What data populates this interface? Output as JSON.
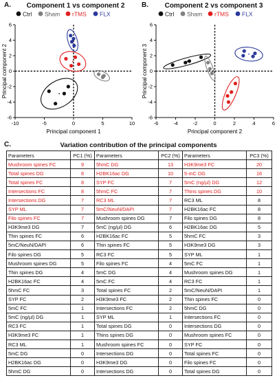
{
  "panel_a": {
    "letter": "A.",
    "title": "Component 1 vs component 2",
    "legend": [
      {
        "label": "Ctrl",
        "color": "#111111"
      },
      {
        "label": "Sham",
        "color": "#808080"
      },
      {
        "label": "rTMS",
        "color": "#e02020"
      },
      {
        "label": "FLX",
        "color": "#2a3a9c"
      }
    ]
  },
  "panel_b": {
    "letter": "B.",
    "title": "Component 2 vs component 3",
    "legend": [
      {
        "label": "Ctrl",
        "color": "#111111"
      },
      {
        "label": "Sham",
        "color": "#808080"
      },
      {
        "label": "rTMS",
        "color": "#e02020"
      },
      {
        "label": "FLX",
        "color": "#2a3a9c"
      }
    ]
  },
  "panel_c": {
    "letter": "C.",
    "title": "Variation contribution of the principal components"
  },
  "chart_data": [
    {
      "type": "scatter",
      "title": "Component 1 vs component 2",
      "xlabel": "Principal component 1",
      "ylabel": "Principal component 2",
      "xlim": [
        -10,
        10
      ],
      "ylim": [
        -6,
        6
      ],
      "xticks": [
        -10,
        -5,
        0,
        5,
        10
      ],
      "yticks": [
        -6,
        -4,
        -2,
        0,
        2,
        4,
        6
      ],
      "series": [
        {
          "name": "Ctrl",
          "color": "#111111",
          "points": [
            [
              -4.2,
              -2.6
            ],
            [
              -3.1,
              -4.2
            ],
            [
              -1.6,
              -2.9
            ],
            [
              -0.9,
              -2.0
            ]
          ]
        },
        {
          "name": "Sham",
          "color": "#808080",
          "points": [
            [
              4.3,
              -0.4
            ],
            [
              5.2,
              -0.6
            ],
            [
              5.0,
              -0.8
            ]
          ]
        },
        {
          "name": "rTMS",
          "color": "#e02020",
          "points": [
            [
              -1.3,
              1.6
            ],
            [
              0.3,
              1.8
            ],
            [
              -0.4,
              0.7
            ],
            [
              0.9,
              0.9
            ]
          ]
        },
        {
          "name": "FLX",
          "color": "#2a3a9c",
          "points": [
            [
              -0.5,
              4.6
            ],
            [
              0.1,
              3.3
            ],
            [
              -0.3,
              3.8
            ],
            [
              0.0,
              4.2
            ]
          ]
        }
      ]
    },
    {
      "type": "scatter",
      "title": "Component 2 vs component 3",
      "xlabel": "Principal component 2",
      "ylabel": "Principal component 3",
      "xlim": [
        -6,
        6
      ],
      "ylim": [
        -6,
        6
      ],
      "xticks": [
        -6,
        -4,
        -2,
        0,
        2,
        4,
        6
      ],
      "yticks": [
        -6,
        -4,
        -2,
        0,
        2,
        4,
        6
      ],
      "series": [
        {
          "name": "Ctrl",
          "color": "#111111",
          "points": [
            [
              -4.3,
              0.8
            ],
            [
              -3.0,
              1.1
            ],
            [
              -2.6,
              1.3
            ],
            [
              -1.4,
              1.8
            ]
          ]
        },
        {
          "name": "Sham",
          "color": "#808080",
          "points": [
            [
              -0.7,
              1.1
            ],
            [
              -0.5,
              0.3
            ],
            [
              -0.3,
              -0.3
            ]
          ]
        },
        {
          "name": "rTMS",
          "color": "#e02020",
          "points": [
            [
              1.3,
              -3.2
            ],
            [
              1.4,
              -4.0
            ],
            [
              1.7,
              -2.7
            ],
            [
              2.1,
              -1.6
            ]
          ]
        },
        {
          "name": "FLX",
          "color": "#2a3a9c",
          "points": [
            [
              2.9,
              2.0
            ],
            [
              3.0,
              2.6
            ],
            [
              3.9,
              1.9
            ],
            [
              4.1,
              2.3
            ]
          ]
        }
      ]
    }
  ],
  "table": {
    "headers": [
      "Parameters",
      "PC1 (%)",
      "Parameters",
      "PC2 (%)",
      "Parameters",
      "PC3 (%)"
    ],
    "rows": [
      {
        "c": [
          "Mushroom spines FC",
          "9",
          "5hmC DG",
          "13",
          "H3K9me3 FC",
          "20"
        ],
        "red": [
          true,
          true,
          true
        ]
      },
      {
        "c": [
          "Total spines DG",
          "8",
          "H2BK16ac DG",
          "10",
          "5-mC DG",
          "16"
        ],
        "red": [
          true,
          true,
          true
        ]
      },
      {
        "c": [
          "Total spines FC",
          "8",
          "SYP FC",
          "7",
          "5mC (ng/µl) DG",
          "12"
        ],
        "red": [
          true,
          true,
          true
        ]
      },
      {
        "c": [
          "Intersections FC",
          "8",
          "5hmC FC",
          "7",
          "Thins spines DG",
          "10"
        ],
        "red": [
          true,
          true,
          true
        ]
      },
      {
        "c": [
          "Intersections DG",
          "7",
          "RC3 ML",
          "7",
          "RC3 ML",
          "8"
        ],
        "red": [
          true,
          true,
          false
        ]
      },
      {
        "c": [
          "SYP ML",
          "7",
          "5mC/NeuN/DAPI",
          "7",
          "H2BK16ac FC",
          "8"
        ],
        "red": [
          true,
          true,
          false
        ]
      },
      {
        "c": [
          "Filo spines FC",
          "7",
          "Mushroom spines DG",
          "7",
          "Filo spines DG",
          "8"
        ],
        "red": [
          true,
          false,
          false
        ]
      },
      {
        "c": [
          "H3K9me3 DG",
          "7",
          "5mC (ng/µl) DG",
          "6",
          "H2BK16ac DG",
          "5"
        ],
        "red": [
          false,
          false,
          false
        ]
      },
      {
        "c": [
          "Thin spines FC",
          "6",
          "H2BK16ac FC",
          "5",
          "5hmC FC",
          "3"
        ],
        "red": [
          false,
          false,
          false
        ]
      },
      {
        "c": [
          "5mC/NeuN/DAPI",
          "6",
          "Thin spines FC",
          "5",
          "H3K9me3 DG",
          "3"
        ],
        "red": [
          false,
          false,
          false
        ]
      },
      {
        "c": [
          "Filo spines DG",
          "5",
          "RC3 FC",
          "5",
          "SYP ML",
          "1"
        ],
        "red": [
          false,
          false,
          false
        ]
      },
      {
        "c": [
          "Mushroom spines DG",
          "5",
          "Filo spines FC",
          "4",
          "5mC FC",
          "1"
        ],
        "red": [
          false,
          false,
          false
        ]
      },
      {
        "c": [
          "Thin spines DG",
          "4",
          "5mC DG",
          "4",
          "Mushroom spines DG",
          "1"
        ],
        "red": [
          false,
          false,
          false
        ]
      },
      {
        "c": [
          "H2BK16ac FC",
          "4",
          "5mC FC",
          "4",
          "RC3 FC",
          "1"
        ],
        "red": [
          false,
          false,
          false
        ]
      },
      {
        "c": [
          "5hmC FC",
          "3",
          "Total spines FC",
          "2",
          "5mC/NeuN/DAPI",
          "1"
        ],
        "red": [
          false,
          false,
          false
        ]
      },
      {
        "c": [
          "SYP FC",
          "2",
          "H3K9me3 FC",
          "2",
          "Thin spines FC",
          "0"
        ],
        "red": [
          false,
          false,
          false
        ]
      },
      {
        "c": [
          "5mC FC",
          "1",
          "Intersections FC",
          "2",
          "5hmC DG",
          "0"
        ],
        "red": [
          false,
          false,
          false
        ]
      },
      {
        "c": [
          "5mC (ng/µl) DG",
          "1",
          "SYP ML",
          "1",
          "Intersections FC",
          "0"
        ],
        "red": [
          false,
          false,
          false
        ]
      },
      {
        "c": [
          "RC3 FC",
          "1",
          "Total spines DG",
          "0",
          "Intersections DG",
          "0"
        ],
        "red": [
          false,
          false,
          false
        ]
      },
      {
        "c": [
          "H3K9me3 FC",
          "1",
          "Thins spines DG",
          "0",
          "Mushroom spines FC",
          "0"
        ],
        "red": [
          false,
          false,
          false
        ]
      },
      {
        "c": [
          "RC3 ML",
          "1",
          "Mushroom spines FC",
          "0",
          "SYP FC",
          "0"
        ],
        "red": [
          false,
          false,
          false
        ]
      },
      {
        "c": [
          "5mC DG",
          "0",
          "Intersections DG",
          "0",
          "Total spines FC",
          "0"
        ],
        "red": [
          false,
          false,
          false
        ]
      },
      {
        "c": [
          "H2BK16ac DG",
          "0",
          "H3K9me3 DG",
          "0",
          "Filo spines FC",
          "0"
        ],
        "red": [
          false,
          false,
          false
        ]
      },
      {
        "c": [
          "5hmC DG",
          "0",
          "Intersections DG",
          "0",
          "Total spines DG",
          "0"
        ],
        "red": [
          false,
          false,
          false
        ]
      }
    ]
  }
}
